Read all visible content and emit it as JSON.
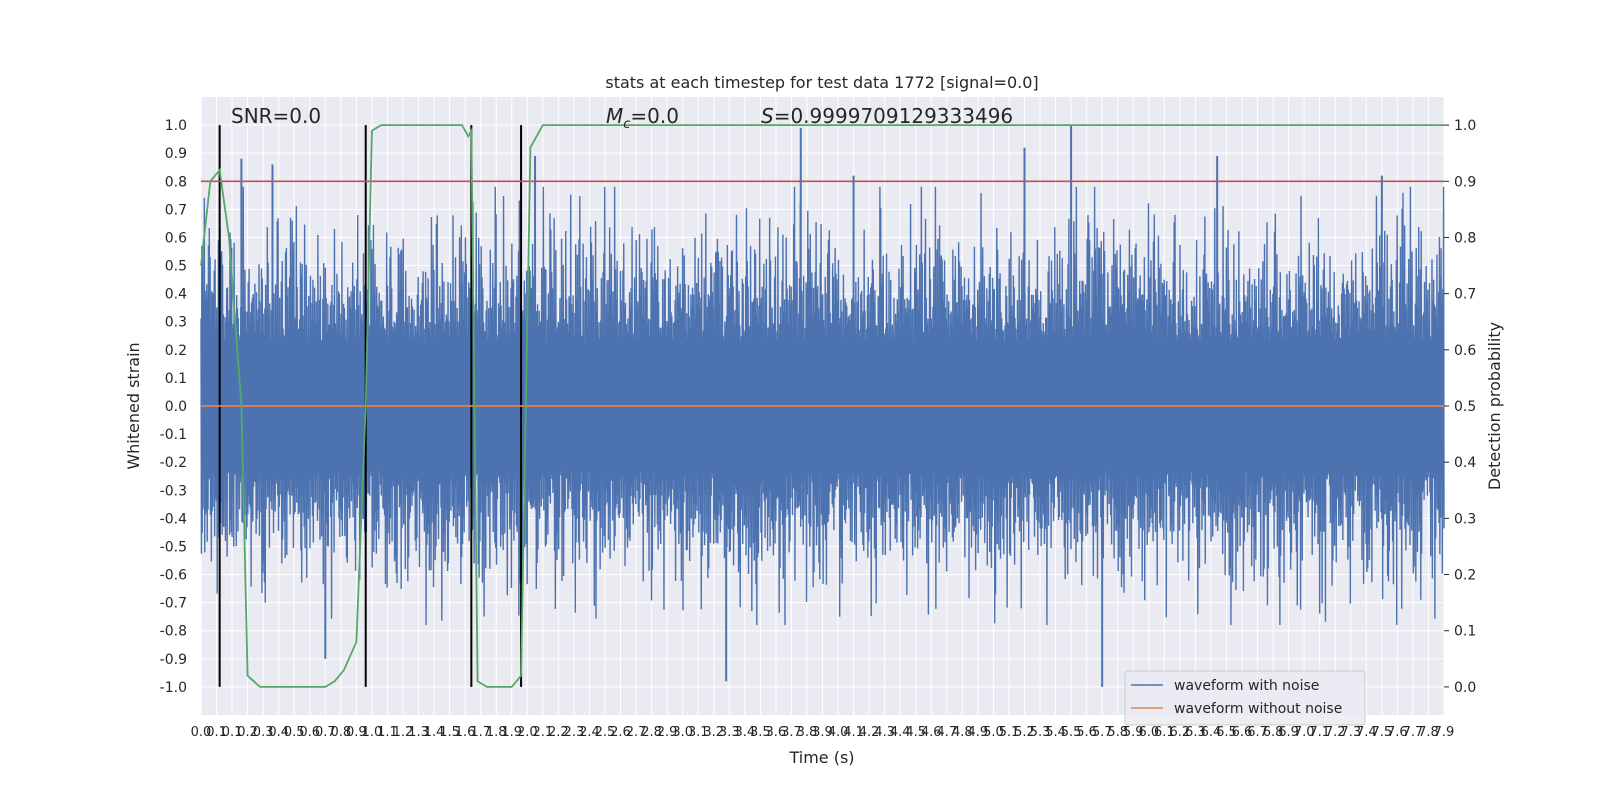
{
  "chart_data": {
    "type": "line",
    "title": "stats at each timestep for test data 1772 [signal=0.0]",
    "xlabel": "Time (s)",
    "ylabel": "Whitened strain",
    "y2label": "Detection probability",
    "xlim": [
      0.0,
      8.0
    ],
    "ylim": [
      -1.1,
      1.1
    ],
    "y2lim": [
      -0.05,
      1.05
    ],
    "grid": true,
    "legend_position": "lower right",
    "annotations": {
      "snr": "SNR=0.0",
      "mc": "=0.0",
      "mc_symbol": "M",
      "mc_subscript": "c",
      "s": "=0.9999709129333496",
      "s_symbol": "S"
    },
    "x_ticks": [
      "0.0",
      "0.1",
      "0.1",
      "0.2",
      "0.3",
      "0.4",
      "0.5",
      "0.6",
      "0.7",
      "0.8",
      "0.9",
      "1.0",
      "1.1",
      "1.2",
      "1.3",
      "1.4",
      "1.5",
      "1.6",
      "1.7",
      "1.8",
      "1.9",
      "2.0",
      "2.1",
      "2.2",
      "2.3",
      "2.4",
      "2.5",
      "2.6",
      "2.7",
      "2.8",
      "2.9",
      "3.0",
      "3.1",
      "3.2",
      "3.3",
      "3.4",
      "3.5",
      "3.6",
      "3.7",
      "3.8",
      "3.9",
      "4.0",
      "4.1",
      "4.2",
      "4.3",
      "4.4",
      "4.5",
      "4.6",
      "4.7",
      "4.8",
      "4.9",
      "5.0",
      "5.1",
      "5.2",
      "5.3",
      "5.4",
      "5.5",
      "5.6",
      "5.7",
      "5.8",
      "5.9",
      "6.0",
      "6.1",
      "6.2",
      "6.3",
      "6.4",
      "6.5",
      "6.6",
      "6.7",
      "6.8",
      "6.9",
      "7.0",
      "7.1",
      "7.2",
      "7.3",
      "7.4",
      "7.5",
      "7.6",
      "7.7",
      "7.8",
      "7.9"
    ],
    "y_ticks": [
      -1.0,
      -0.9,
      -0.8,
      -0.7,
      -0.6,
      -0.5,
      -0.4,
      -0.3,
      -0.2,
      -0.1,
      0.0,
      0.1,
      0.2,
      0.3,
      0.4,
      0.5,
      0.6,
      0.7,
      0.8,
      0.9,
      1.0
    ],
    "y2_ticks": [
      0.0,
      0.1,
      0.2,
      0.3,
      0.4,
      0.5,
      0.6,
      0.7,
      0.8,
      0.9,
      1.0
    ],
    "threshold_y2": 0.9,
    "vertical_markers_x": [
      0.12,
      1.06,
      1.74,
      2.06
    ],
    "noise_amplitude_typical": 0.42,
    "noise_peaks": [
      {
        "x": 0.26,
        "y": 0.88
      },
      {
        "x": 0.46,
        "y": 0.86
      },
      {
        "x": 0.8,
        "y": -0.9
      },
      {
        "x": 2.15,
        "y": 0.89
      },
      {
        "x": 3.38,
        "y": -0.98
      },
      {
        "x": 3.86,
        "y": 0.99
      },
      {
        "x": 4.2,
        "y": 0.82
      },
      {
        "x": 5.3,
        "y": 0.92
      },
      {
        "x": 5.6,
        "y": 1.0
      },
      {
        "x": 5.8,
        "y": -1.0
      },
      {
        "x": 6.54,
        "y": 0.89
      },
      {
        "x": 7.6,
        "y": 0.82
      }
    ],
    "series": [
      {
        "name": "waveform with noise",
        "color": "#4c72b0",
        "axis": "left"
      },
      {
        "name": "waveform without noise",
        "color": "#dd8452",
        "axis": "left",
        "values_constant": 0.0
      },
      {
        "color": "#55a868",
        "axis": "right",
        "x": [
          0.0,
          0.06,
          0.12,
          0.18,
          0.26,
          0.3,
          0.38,
          0.5,
          0.7,
          0.8,
          0.86,
          0.92,
          1.0,
          1.06,
          1.1,
          1.16,
          1.3,
          1.5,
          1.68,
          1.72,
          1.74,
          1.78,
          1.84,
          1.92,
          2.0,
          2.06,
          2.12,
          2.2,
          2.5,
          3.0,
          4.0,
          5.0,
          6.0,
          7.0,
          8.0
        ],
        "y": [
          0.75,
          0.9,
          0.92,
          0.8,
          0.5,
          0.02,
          0.0,
          0.0,
          0.0,
          0.0,
          0.01,
          0.03,
          0.08,
          0.5,
          0.99,
          1.0,
          1.0,
          1.0,
          1.0,
          0.98,
          0.99,
          0.01,
          0.0,
          0.0,
          0.0,
          0.02,
          0.96,
          1.0,
          1.0,
          1.0,
          1.0,
          1.0,
          1.0,
          1.0,
          1.0
        ]
      }
    ]
  }
}
